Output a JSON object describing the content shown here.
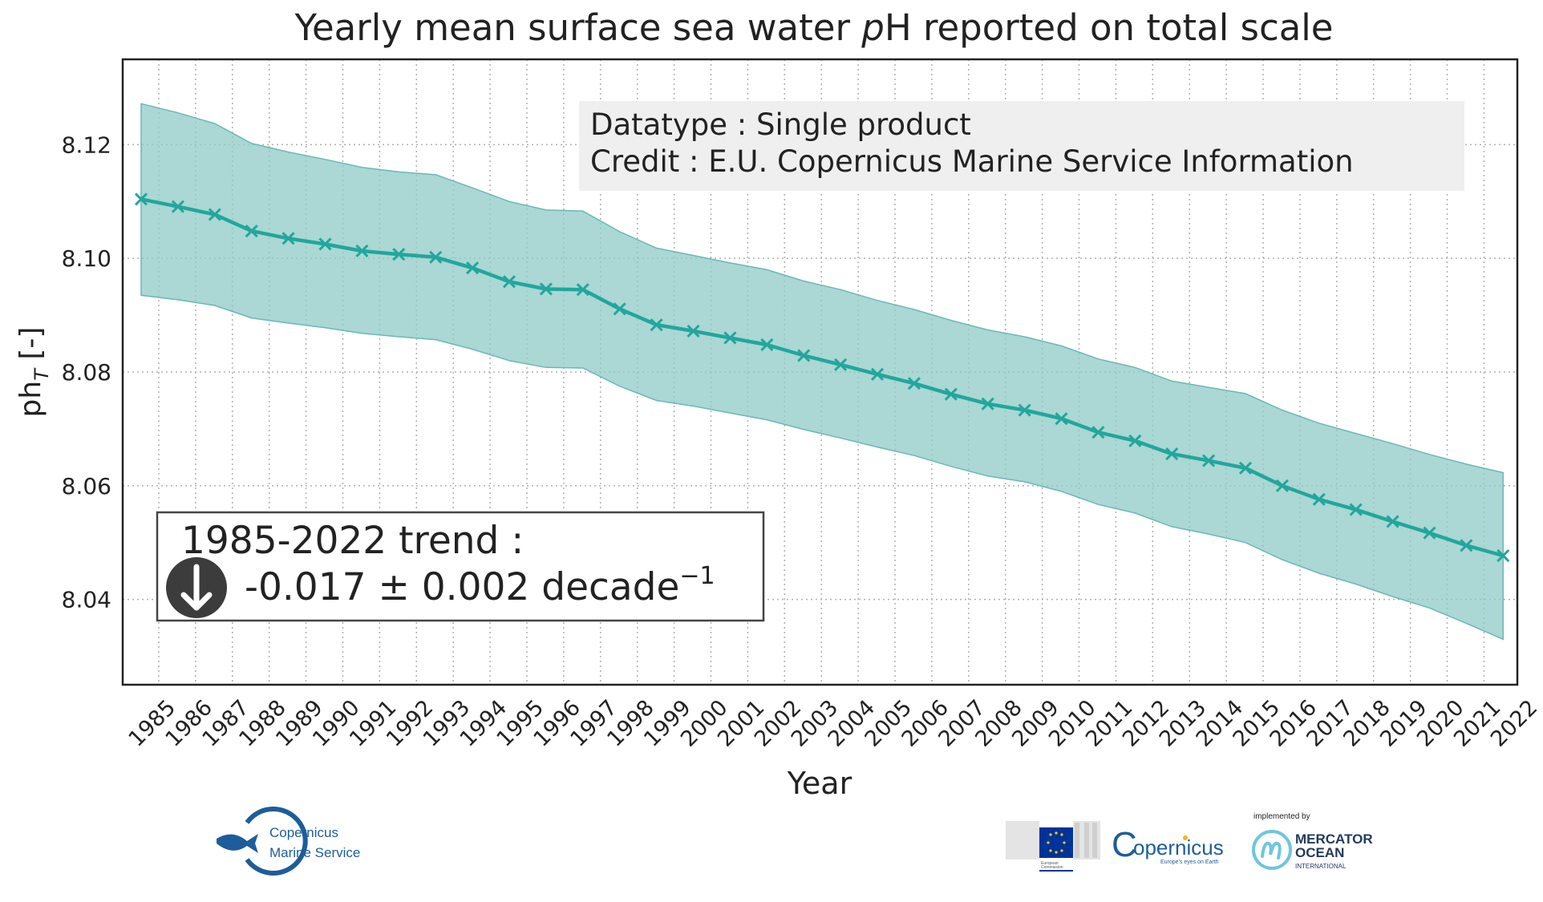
{
  "chart_data": {
    "type": "line",
    "title_prefix": "Yearly mean surface sea water ",
    "title_italic": "p",
    "title_suffix": "H reported on total scale",
    "xlabel": "Year",
    "ylabel_main": "ph",
    "ylabel_sub": "T",
    "ylabel_suffix": " [-]",
    "ylim": [
      8.025,
      8.135
    ],
    "yticks": [
      8.04,
      8.06,
      8.08,
      8.1,
      8.12
    ],
    "ytick_labels": [
      "8.04",
      "8.06",
      "8.08",
      "8.10",
      "8.12"
    ],
    "grid": true,
    "x": [
      1985,
      1986,
      1987,
      1988,
      1989,
      1990,
      1991,
      1992,
      1993,
      1994,
      1995,
      1996,
      1997,
      1998,
      1999,
      2000,
      2001,
      2002,
      2003,
      2004,
      2005,
      2006,
      2007,
      2008,
      2009,
      2010,
      2011,
      2012,
      2013,
      2014,
      2015,
      2016,
      2017,
      2018,
      2019,
      2020,
      2021,
      2022
    ],
    "x_labels": [
      "1985",
      "1986",
      "1987",
      "1988",
      "1989",
      "1990",
      "1991",
      "1992",
      "1993",
      "1994",
      "1995",
      "1996",
      "1997",
      "1998",
      "1999",
      "2000",
      "2001",
      "2002",
      "2003",
      "2004",
      "2005",
      "2006",
      "2007",
      "2008",
      "2009",
      "2010",
      "2011",
      "2012",
      "2013",
      "2014",
      "2015",
      "2016",
      "2017",
      "2018",
      "2019",
      "2020",
      "2021",
      "2022"
    ],
    "series": [
      {
        "values": [
          8.1104,
          8.1091,
          8.1077,
          8.1048,
          8.1035,
          8.1025,
          8.1013,
          8.1007,
          8.1002,
          8.0983,
          8.0959,
          8.0946,
          8.0945,
          8.0911,
          8.0883,
          8.0872,
          8.086,
          8.0848,
          8.0829,
          8.0813,
          8.0796,
          8.078,
          8.0761,
          8.0744,
          8.0733,
          8.0718,
          8.0694,
          8.0679,
          8.0656,
          8.0644,
          8.0631,
          8.06,
          8.0576,
          8.0558,
          8.0537,
          8.0517,
          8.0495,
          8.0477
        ],
        "lower": [
          8.0935,
          8.0927,
          8.0917,
          8.0895,
          8.0886,
          8.0878,
          8.0868,
          8.0862,
          8.0857,
          8.084,
          8.082,
          8.0808,
          8.0807,
          8.0775,
          8.075,
          8.074,
          8.0728,
          8.0716,
          8.0699,
          8.0684,
          8.0668,
          8.0653,
          8.0634,
          8.0617,
          8.0607,
          8.059,
          8.0567,
          8.0552,
          8.0528,
          8.0515,
          8.05,
          8.047,
          8.0446,
          8.0427,
          8.0405,
          8.0385,
          8.0358,
          8.033
        ],
        "upper": [
          8.1272,
          8.1256,
          8.1237,
          8.1202,
          8.1187,
          8.1174,
          8.116,
          8.1152,
          8.1147,
          8.1124,
          8.11,
          8.1085,
          8.1083,
          8.1047,
          8.1018,
          8.1005,
          8.0992,
          8.098,
          8.096,
          8.0945,
          8.0926,
          8.091,
          8.0891,
          8.0874,
          8.0862,
          8.0846,
          8.0823,
          8.0808,
          8.0784,
          8.0773,
          8.0762,
          8.0733,
          8.071,
          8.0692,
          8.0674,
          8.0655,
          8.0638,
          8.0623
        ]
      }
    ],
    "annotations": {
      "info_box": [
        "Datatype : Single product",
        "Credit : E.U. Copernicus Marine Service Information"
      ],
      "trend_title": "1985-2022 trend :",
      "trend_value": "-0.017 ± 0.002 decade",
      "trend_exponent": "−1"
    }
  },
  "colors": {
    "line": "#21a79b",
    "band": "#8fcac7",
    "band_edge": "#6ab9b4",
    "text": "#222222",
    "grid": "#b0b0b0",
    "info_bg": "#efefef",
    "trend_icon": "#3c3c3c",
    "brand_blue": "#1d5d9b"
  },
  "logos": {
    "cms_line1": "Copernicus",
    "cms_line2": "Marine Service",
    "ec_line1": "European",
    "ec_line2": "Commission",
    "copernicus_word": "opernicus",
    "copernicus_c": "C",
    "copernicus_tag": "Europe's eyes on Earth",
    "implemented_by": "implemented by",
    "mercator_line1": "MERCATOR",
    "mercator_line2": "OCEAN",
    "mercator_line3": "INTERNATIONAL"
  },
  "icons": {
    "trend": "arrow-down-circle-icon",
    "cms": "fish-logo-icon",
    "mercator": "m-wave-logo-icon"
  }
}
